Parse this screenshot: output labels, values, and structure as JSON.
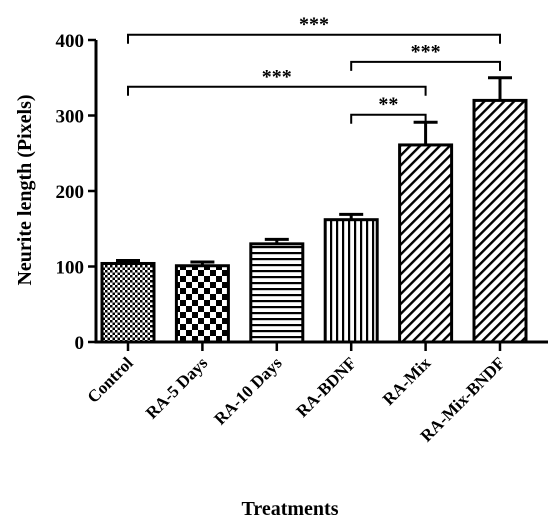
{
  "chart_data": {
    "type": "bar",
    "title": "",
    "xlabel": "Treatments",
    "ylabel": "Neurite length (Pixels)",
    "ylim": [
      0,
      400
    ],
    "yticks": [
      0,
      100,
      200,
      300,
      400
    ],
    "grid": false,
    "categories": [
      "Control",
      "RA-5 Days",
      "RA-10 Days",
      "RA-BDNF",
      "RA-Mix",
      "RA-Mix-BNDF"
    ],
    "values": [
      104,
      101,
      130,
      162,
      261,
      320
    ],
    "errors": [
      4,
      5,
      6,
      7,
      30,
      30
    ],
    "patterns": [
      "fine-check",
      "checkerboard",
      "horizontal-lines",
      "vertical-lines",
      "diagonal-lines",
      "diagonal-lines"
    ],
    "colors": {
      "ink": "#000000",
      "fill": "#ffffff"
    },
    "significance": [
      {
        "from": 0,
        "to": 5,
        "label": "***",
        "y": 407
      },
      {
        "from": 3,
        "to": 5,
        "label": "***",
        "y": 371
      },
      {
        "from": 0,
        "to": 4,
        "label": "***",
        "y": 338
      },
      {
        "from": 3,
        "to": 4,
        "label": "**",
        "y": 301
      }
    ]
  }
}
